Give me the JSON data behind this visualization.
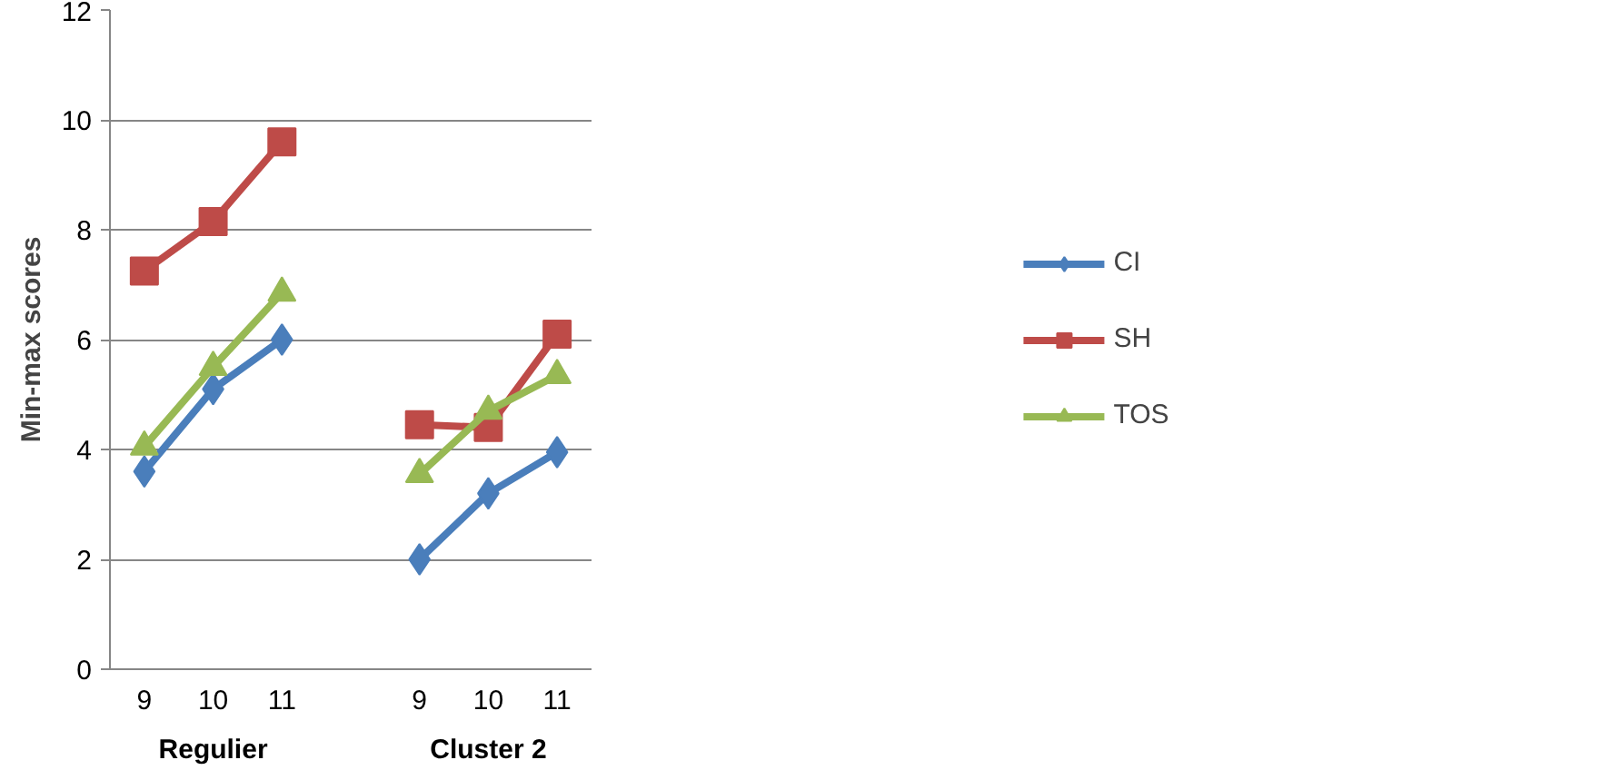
{
  "chart_data": {
    "type": "line",
    "ylabel": "Min-max scores",
    "categories": [
      "9",
      "10",
      "11",
      null,
      "9",
      "10",
      "11"
    ],
    "annotations": [
      "Regulier",
      "Cluster 2"
    ],
    "ylim": [
      0,
      12
    ],
    "yticks": [
      0,
      2,
      4,
      6,
      8,
      10,
      12
    ],
    "grid": "y",
    "legend": "right",
    "series": [
      {
        "name": "CI",
        "color": "#4a7ebb",
        "marker": "diamond",
        "values": [
          3.6,
          5.1,
          6.0,
          null,
          2.0,
          3.2,
          3.95
        ]
      },
      {
        "name": "SH",
        "color": "#be4b48",
        "marker": "square",
        "values": [
          7.25,
          8.15,
          9.6,
          null,
          4.45,
          4.4,
          6.1
        ]
      },
      {
        "name": "TOS",
        "color": "#98b954",
        "marker": "triangle",
        "values": [
          4.05,
          5.5,
          6.85,
          null,
          3.55,
          4.7,
          5.35
        ]
      }
    ]
  }
}
